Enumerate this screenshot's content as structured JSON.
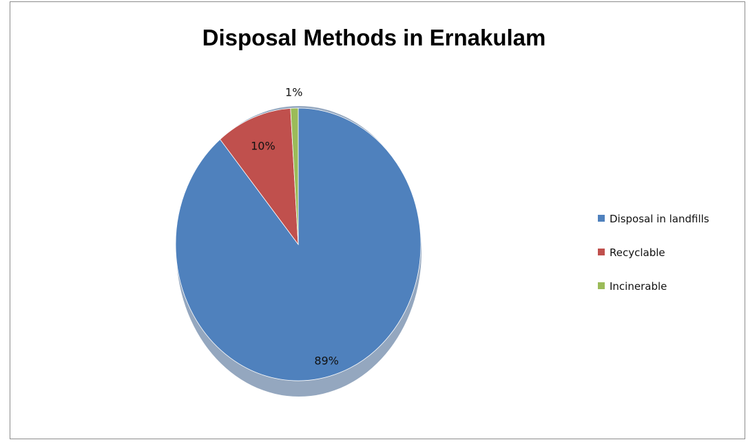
{
  "chart_data": {
    "type": "pie",
    "title": "Disposal Methods in Ernakulam",
    "slices": [
      {
        "label": "Disposal in landfills",
        "value": 89,
        "display": "89%",
        "color": "#4f81bd"
      },
      {
        "label": "Recyclable",
        "value": 10,
        "display": "10%",
        "color": "#c0504d"
      },
      {
        "label": "Incinerable",
        "value": 1,
        "display": "1%",
        "color": "#9bbb59"
      }
    ],
    "legend_position": "right"
  }
}
